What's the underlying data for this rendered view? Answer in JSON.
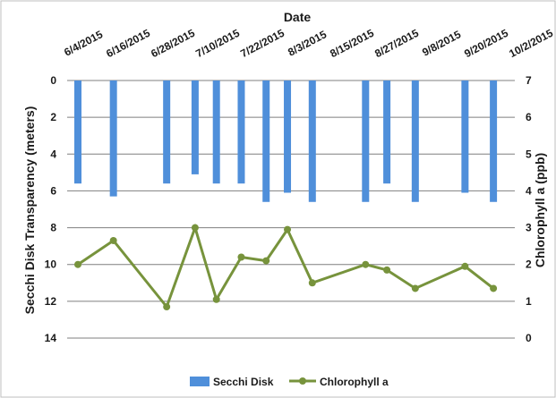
{
  "chart_data": {
    "type": "bar",
    "title": "",
    "xlabel": "Date",
    "ylabel": "Secchi Disk Transparency (meters)",
    "ylabel_right": "Chlorophyll a (ppb)",
    "x_axis_position": "top",
    "x_ticks": [
      "6/4/2015",
      "6/16/2015",
      "6/28/2015",
      "7/10/2015",
      "7/22/2015",
      "8/3/2015",
      "8/15/2015",
      "8/27/2015",
      "9/8/2015",
      "9/20/2015",
      "10/2/2015"
    ],
    "xlim": [
      "2015-06-04",
      "2015-10-02"
    ],
    "ylim_left": [
      0,
      14
    ],
    "y_left_inverted": true,
    "y_left_ticks": [
      0,
      2,
      4,
      6,
      8,
      10,
      12,
      14
    ],
    "ylim_right": [
      0,
      7
    ],
    "y_right_ticks": [
      0,
      1,
      2,
      3,
      4,
      5,
      6,
      7
    ],
    "grid": "horizontal",
    "legend_position": "bottom",
    "series": [
      {
        "name": "Secchi Disk",
        "kind": "bar",
        "axis": "left",
        "color": "#4F8FDA",
        "x": [
          "2015-06-04",
          "2015-06-14",
          "2015-06-29",
          "2015-07-07",
          "2015-07-13",
          "2015-07-20",
          "2015-07-27",
          "2015-08-02",
          "2015-08-09",
          "2015-08-24",
          "2015-08-30",
          "2015-09-07",
          "2015-09-21",
          "2015-09-29"
        ],
        "values": [
          5.6,
          6.3,
          5.6,
          5.1,
          5.6,
          5.6,
          6.6,
          6.1,
          6.6,
          6.6,
          5.6,
          6.6,
          6.1,
          6.6
        ]
      },
      {
        "name": "Chlorophyll a",
        "kind": "line",
        "axis": "right",
        "color": "#77933C",
        "x": [
          "2015-06-04",
          "2015-06-14",
          "2015-06-29",
          "2015-07-07",
          "2015-07-13",
          "2015-07-20",
          "2015-07-27",
          "2015-08-02",
          "2015-08-09",
          "2015-08-24",
          "2015-08-30",
          "2015-09-07",
          "2015-09-21",
          "2015-09-29"
        ],
        "values": [
          2.0,
          2.65,
          0.85,
          3.0,
          1.05,
          2.2,
          2.1,
          2.95,
          1.5,
          2.0,
          1.85,
          1.35,
          1.95,
          1.35
        ]
      }
    ]
  }
}
